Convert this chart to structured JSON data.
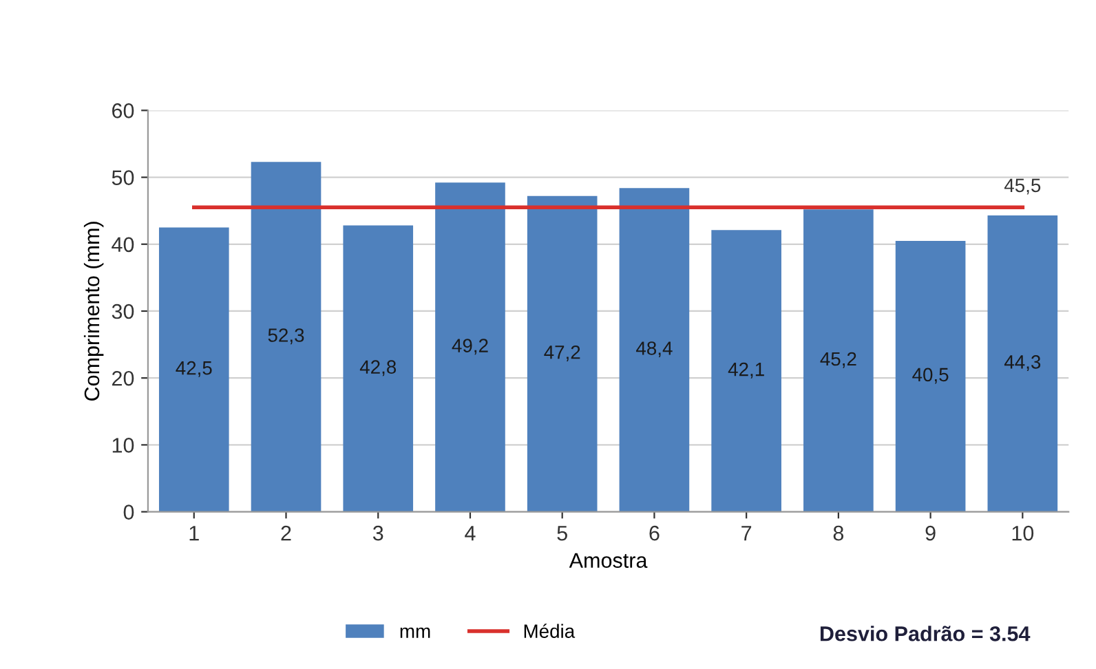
{
  "chart_data": {
    "type": "bar",
    "xlabel": "Amostra",
    "ylabel": "Comprimento (mm)",
    "categories": [
      "1",
      "2",
      "3",
      "4",
      "5",
      "6",
      "7",
      "8",
      "9",
      "10"
    ],
    "series": [
      {
        "name": "mm",
        "color": "#4f81bd",
        "values": [
          42.5,
          52.3,
          42.8,
          49.2,
          47.2,
          48.4,
          42.1,
          45.2,
          40.5,
          44.3
        ],
        "value_labels": [
          "42,5",
          "52,3",
          "42,8",
          "49,2",
          "47,2",
          "48,4",
          "42,1",
          "45,2",
          "40,5",
          "44,3"
        ]
      },
      {
        "name": "Média",
        "type": "line",
        "color": "#d9302c",
        "values": [
          45.5,
          45.5,
          45.5,
          45.5,
          45.5,
          45.5,
          45.5,
          45.5,
          45.5,
          45.5
        ],
        "value_labels": [
          null,
          null,
          null,
          null,
          null,
          null,
          null,
          null,
          null,
          "45,5"
        ]
      }
    ],
    "ylim": [
      0,
      60
    ],
    "yticks": [
      0,
      10,
      20,
      30,
      40,
      50,
      60
    ],
    "grid": "y",
    "legend": "bottom",
    "marker": "none",
    "annotations": [
      "Desvio Padrão = 3.54"
    ]
  }
}
